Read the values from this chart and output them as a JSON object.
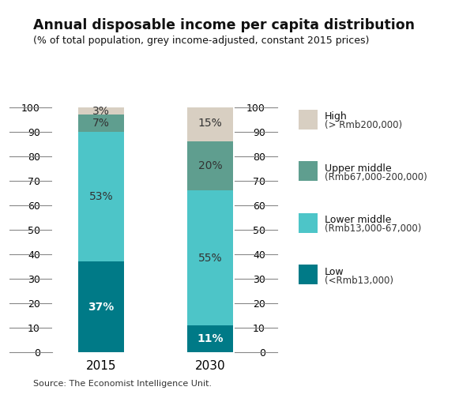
{
  "title": "Annual disposable income per capita distribution",
  "subtitle": "(% of total population, grey income-adjusted, constant 2015 prices)",
  "categories": [
    "2015",
    "2030"
  ],
  "segments": [
    {
      "label": "Low",
      "sublabel": "(<Rmb13,000)",
      "values": [
        37,
        11
      ],
      "color": "#007a87",
      "text_color": "white"
    },
    {
      "label": "Lower middle",
      "sublabel": "(Rmb13,000-67,000)",
      "values": [
        53,
        55
      ],
      "color": "#4dc5c8",
      "text_color": "#333333"
    },
    {
      "label": "Upper middle",
      "sublabel": "(Rmb67,000-200,000)",
      "values": [
        7,
        20
      ],
      "color": "#5f9e8f",
      "text_color": "#333333"
    },
    {
      "label": "High",
      "sublabel": "(> Rmb200,000)",
      "values": [
        3,
        15
      ],
      "color": "#d8cfc2",
      "text_color": "#333333"
    }
  ],
  "ylim": [
    0,
    100
  ],
  "yticks": [
    0,
    10,
    20,
    30,
    40,
    50,
    60,
    70,
    80,
    90,
    100
  ],
  "source": "Source: The Economist Intelligence Unit.",
  "bar_width": 0.42,
  "bar_positions": [
    1,
    2
  ],
  "background_color": "#ffffff",
  "legend_order": [
    3,
    2,
    1,
    0
  ],
  "legend_items": [
    {
      "label": "High",
      "sublabel": "(> Rmb200,000)",
      "color": "#d8cfc2"
    },
    {
      "label": "Upper middle",
      "sublabel": "(Rmb67,000-200,000)",
      "color": "#5f9e8f"
    },
    {
      "label": "Lower middle",
      "sublabel": "(Rmb13,000-67,000)",
      "color": "#4dc5c8"
    },
    {
      "label": "Low",
      "sublabel": "(<Rmb13,000)",
      "color": "#007a87"
    }
  ]
}
